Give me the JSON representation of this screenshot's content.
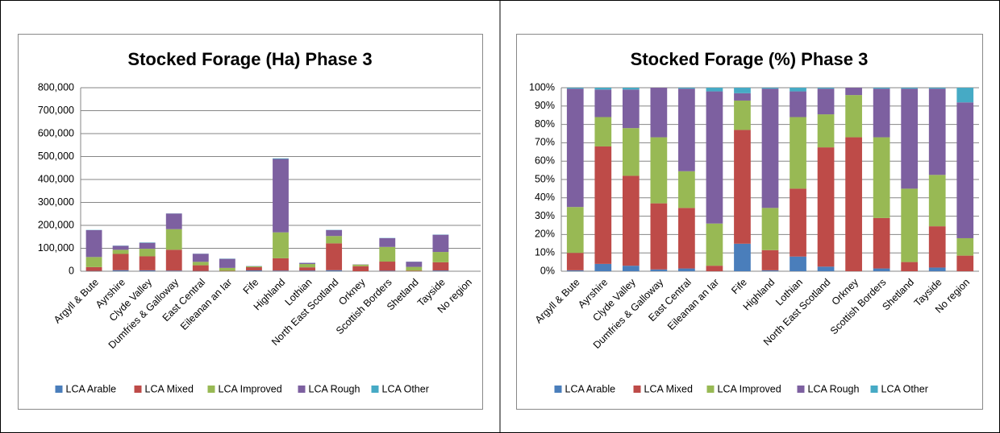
{
  "chart_data": [
    {
      "type": "bar",
      "stacked": true,
      "title": "Stocked Forage (Ha) Phase 3",
      "categories": [
        "Argyll & Bute",
        "Ayrshire",
        "Clyde Valley",
        "Dumfries & Galloway",
        "East Central",
        "Eileanan an Iar",
        "Fife",
        "Highland",
        "Lothian",
        "North East Scotland",
        "Orkney",
        "Scottish Borders",
        "Shetland",
        "Tayside",
        "No region"
      ],
      "series": [
        {
          "name": "LCA Arable",
          "color": "#4a7ebb",
          "values": [
            1000,
            4500,
            4000,
            2500,
            1000,
            0,
            3500,
            2500,
            3000,
            4500,
            0,
            2000,
            0,
            3000,
            0
          ]
        },
        {
          "name": "LCA Mixed",
          "color": "#be4b48",
          "values": [
            17000,
            71000,
            61000,
            91000,
            25000,
            1500,
            14000,
            54000,
            14000,
            117000,
            22000,
            40000,
            2000,
            36000,
            0
          ]
        },
        {
          "name": "LCA Improved",
          "color": "#98b954",
          "values": [
            44000,
            18000,
            33000,
            90000,
            15000,
            13000,
            3700,
            113000,
            14500,
            32000,
            7000,
            64000,
            17000,
            45000,
            0
          ]
        },
        {
          "name": "LCA Rough",
          "color": "#7d60a0",
          "values": [
            117000,
            17000,
            26000,
            68000,
            35000,
            39500,
            1000,
            320000,
            5000,
            26000,
            1000,
            38000,
            22500,
            75000,
            0
          ]
        },
        {
          "name": "LCA Other",
          "color": "#46aac5",
          "values": [
            1000,
            1000,
            1500,
            500,
            500,
            1000,
            700,
            2500,
            500,
            1000,
            0,
            1000,
            500,
            1000,
            0
          ]
        }
      ],
      "ylim": [
        0,
        800000
      ],
      "yticks": [
        0,
        {
          "value": 100000,
          "label": "100,000"
        },
        {
          "value": 200000,
          "label": "200,000"
        },
        {
          "value": 300000,
          "label": "300,000"
        },
        {
          "value": 400000,
          "label": "400,000"
        },
        {
          "value": 500000,
          "label": "500,000"
        },
        {
          "value": 600000,
          "label": "600,000"
        },
        {
          "value": 700000,
          "label": "700,000"
        },
        {
          "value": 800000,
          "label": "800,000"
        }
      ],
      "grid": true,
      "legend": "bottom"
    },
    {
      "type": "bar",
      "stacked": true,
      "title": "Stocked Forage (%) Phase 3",
      "categories": [
        "Argyll & Bute",
        "Ayrshire",
        "Clyde Valley",
        "Dumfries & Galloway",
        "East Central",
        "Eileanan an Iar",
        "Fife",
        "Highland",
        "Lothian",
        "North East Scotland",
        "Orkney",
        "Scottish Borders",
        "Shetland",
        "Tayside",
        "No region"
      ],
      "series": [
        {
          "name": "LCA Arable",
          "color": "#4a7ebb",
          "values": [
            0.5,
            4,
            3,
            1,
            1.5,
            0,
            15,
            0.5,
            8,
            2.5,
            0,
            1.5,
            0,
            2,
            0
          ]
        },
        {
          "name": "LCA Mixed",
          "color": "#be4b48",
          "values": [
            9.5,
            64,
            49,
            36,
            33,
            3,
            62,
            11,
            37,
            65,
            73,
            27.5,
            5,
            22.5,
            8.5
          ]
        },
        {
          "name": "LCA Improved",
          "color": "#98b954",
          "values": [
            25,
            16,
            26,
            36,
            20,
            23,
            16,
            23,
            39,
            18,
            23,
            44,
            40,
            28,
            9.5
          ]
        },
        {
          "name": "LCA Rough",
          "color": "#7d60a0",
          "values": [
            64.5,
            15,
            21,
            27,
            45,
            72,
            4,
            65,
            14,
            14,
            4,
            26.5,
            54.5,
            47,
            74
          ]
        },
        {
          "name": "LCA Other",
          "color": "#46aac5",
          "values": [
            0.5,
            1,
            1,
            0,
            0.5,
            2,
            3,
            0.5,
            2,
            0.5,
            0,
            0.5,
            0.5,
            0.5,
            8
          ]
        }
      ],
      "ylim": [
        0,
        100
      ],
      "yticks": [
        {
          "value": 0,
          "label": "0%"
        },
        {
          "value": 10,
          "label": "10%"
        },
        {
          "value": 20,
          "label": "20%"
        },
        {
          "value": 30,
          "label": "30%"
        },
        {
          "value": 40,
          "label": "40%"
        },
        {
          "value": 50,
          "label": "50%"
        },
        {
          "value": 60,
          "label": "60%"
        },
        {
          "value": 70,
          "label": "70%"
        },
        {
          "value": 80,
          "label": "80%"
        },
        {
          "value": 90,
          "label": "90%"
        },
        {
          "value": 100,
          "label": "100%"
        }
      ],
      "grid": true,
      "legend": "bottom"
    }
  ]
}
